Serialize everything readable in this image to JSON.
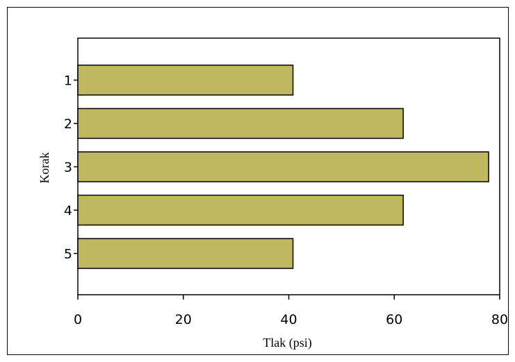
{
  "chart_data": {
    "type": "bar",
    "orientation": "horizontal",
    "categories": [
      "1",
      "2",
      "3",
      "4",
      "5"
    ],
    "values": [
      40.8,
      61.7,
      77.9,
      61.7,
      40.8
    ],
    "xlabel": "Tlak (psi)",
    "ylabel": "Korak",
    "xlim": [
      0,
      80
    ],
    "xticks": [
      "0",
      "20",
      "40",
      "60",
      "80"
    ],
    "grid": false,
    "bar_color": "#bfb85f",
    "bar_edge_color": "#000000"
  }
}
